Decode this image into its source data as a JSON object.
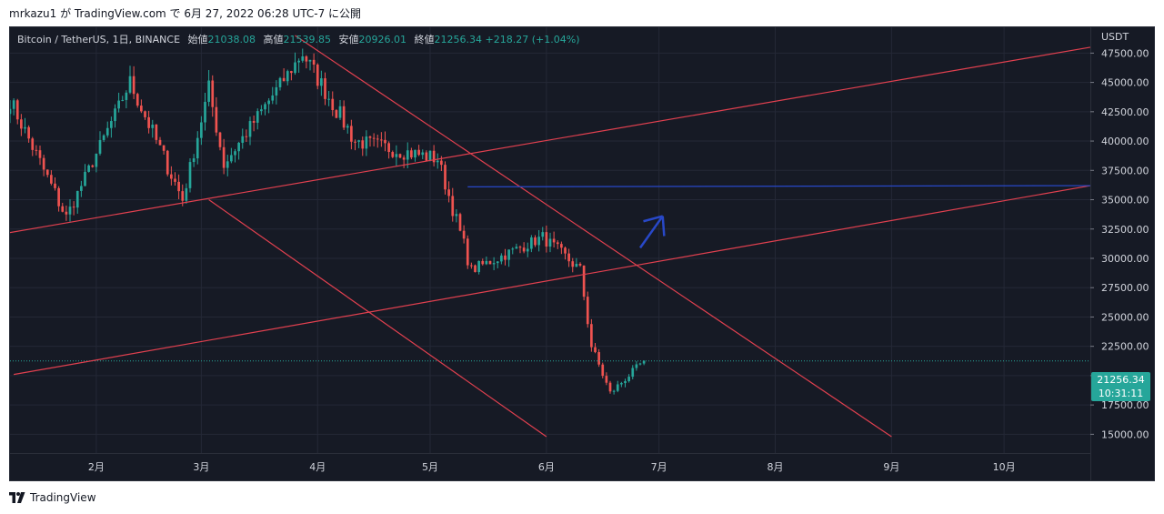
{
  "header": {
    "caption": "mrkazu1 が TradingView.com で 6月 27, 2022 06:28 UTC-7 に公開"
  },
  "legend": {
    "symbol": "Bitcoin / TetherUS, 1日, BINANCE",
    "open_label": "始値",
    "open": "21038.08",
    "high_label": "高値",
    "high": "21539.85",
    "low_label": "安値",
    "low": "20926.01",
    "close_label": "終値",
    "close": "21256.34",
    "change": "+218.27 (+1.04%)"
  },
  "price_axis": {
    "currency": "USDT",
    "last_price": "21256.34",
    "countdown": "10:31:11"
  },
  "footer": {
    "brand": "TradingView"
  },
  "colors": {
    "background": "#161a25",
    "up": "#26a69a",
    "down": "#ef5350",
    "trendline": "#e0404f",
    "horizontal_line": "#2848c8",
    "arrow": "#2848c8",
    "grid": "#242836"
  },
  "chart_data": {
    "type": "candlestick",
    "symbol": "BTCUSDT",
    "exchange": "BINANCE",
    "interval": "1日",
    "x_range": [
      "2022-01-09",
      "2022-10-24"
    ],
    "y_range": [
      13400,
      49700
    ],
    "y_ticks": [
      15000,
      17500,
      20000,
      22500,
      25000,
      27500,
      30000,
      32500,
      35000,
      37500,
      40000,
      42500,
      45000,
      47500
    ],
    "y_tick_labels": [
      "15000.00",
      "17500.00",
      "20000.00",
      "22500.00",
      "25000.00",
      "27500.00",
      "30000.00",
      "32500.00",
      "35000.00",
      "37500.00",
      "40000.00",
      "42500.00",
      "45000.00",
      "47500.00"
    ],
    "x_ticks": [
      {
        "date": "2022-02-01",
        "label": "2月"
      },
      {
        "date": "2022-03-01",
        "label": "3月"
      },
      {
        "date": "2022-04-01",
        "label": "4月"
      },
      {
        "date": "2022-05-01",
        "label": "5月"
      },
      {
        "date": "2022-06-01",
        "label": "6月"
      },
      {
        "date": "2022-07-01",
        "label": "7月"
      },
      {
        "date": "2022-08-01",
        "label": "8月"
      },
      {
        "date": "2022-09-01",
        "label": "9月"
      },
      {
        "date": "2022-10-01",
        "label": "10月"
      }
    ],
    "last_price": 21256.34,
    "grid": true,
    "key_candles": [
      {
        "date": "2022-01-09",
        "price": 43500
      },
      {
        "date": "2022-01-24",
        "price": 33500
      },
      {
        "date": "2022-02-10",
        "price": 45000
      },
      {
        "date": "2022-02-24",
        "price": 35000
      },
      {
        "date": "2022-03-03",
        "price": 44500
      },
      {
        "date": "2022-03-07",
        "price": 38000
      },
      {
        "date": "2022-03-28",
        "price": 47500
      },
      {
        "date": "2022-04-11",
        "price": 40000
      },
      {
        "date": "2022-05-03",
        "price": 38500
      },
      {
        "date": "2022-05-12",
        "price": 29000
      },
      {
        "date": "2022-05-31",
        "price": 31800
      },
      {
        "date": "2022-06-10",
        "price": 29000
      },
      {
        "date": "2022-06-13",
        "price": 22500
      },
      {
        "date": "2022-06-18",
        "price": 18500
      },
      {
        "date": "2022-06-27",
        "price": 21256
      }
    ],
    "drawings": [
      {
        "kind": "trendline",
        "from": [
          "2022-01-09",
          32200
        ],
        "to": [
          "2022-10-24",
          48000
        ]
      },
      {
        "kind": "trendline",
        "from": [
          "2022-01-10",
          20100
        ],
        "to": [
          "2022-10-24",
          36200
        ]
      },
      {
        "kind": "trendline",
        "from": [
          "2022-03-26",
          49000
        ],
        "to": [
          "2022-09-01",
          14800
        ]
      },
      {
        "kind": "trendline",
        "from": [
          "2022-03-03",
          35000
        ],
        "to": [
          "2022-06-01",
          14800
        ]
      },
      {
        "kind": "horizontal",
        "from": [
          "2022-05-11",
          36100
        ],
        "to": [
          "2022-10-24",
          36200
        ]
      },
      {
        "kind": "arrow",
        "from": [
          "2022-06-26",
          30900
        ],
        "to": [
          "2022-07-02",
          33600
        ]
      }
    ]
  }
}
